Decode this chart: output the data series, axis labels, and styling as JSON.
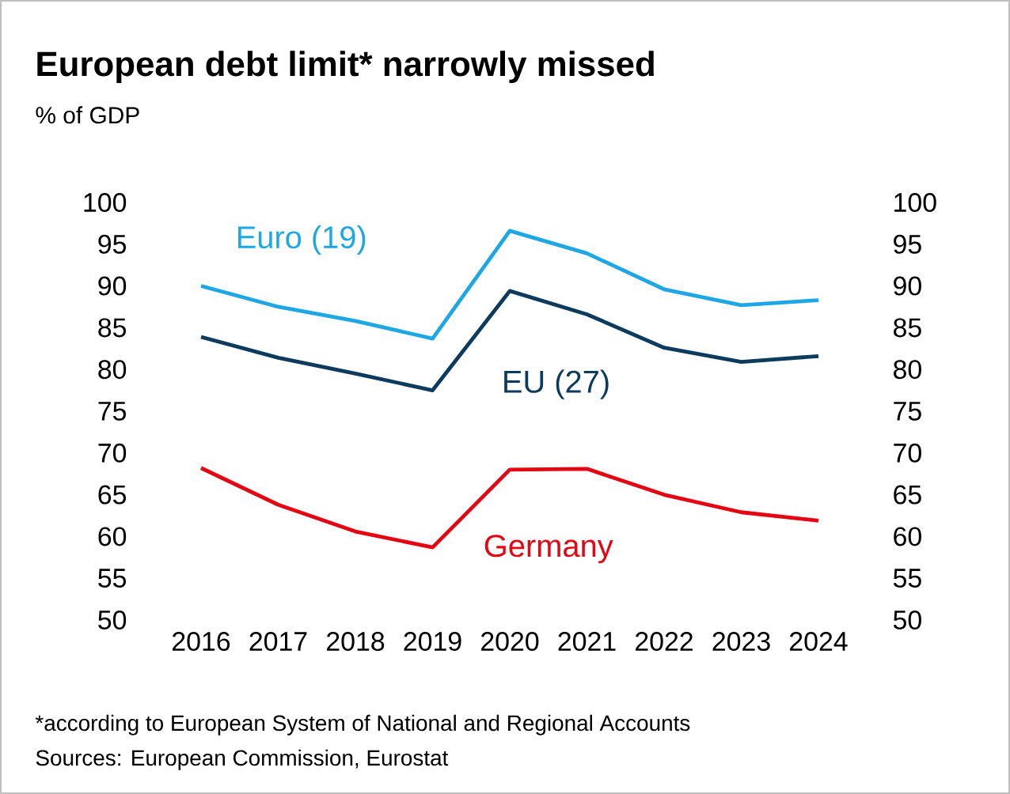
{
  "chart_data": {
    "type": "line",
    "title": "European debt limit* narrowly missed",
    "subtitle": "% of GDP",
    "categories": [
      "2016",
      "2017",
      "2018",
      "2019",
      "2020",
      "2021",
      "2022",
      "2023",
      "2024"
    ],
    "series": [
      {
        "name": "Euro (19)",
        "color": "#1ea7e4",
        "values": [
          90.0,
          87.5,
          85.8,
          83.7,
          96.6,
          93.9,
          89.6,
          87.7,
          88.3
        ]
      },
      {
        "name": "EU (27)",
        "color": "#0c3b5e",
        "values": [
          83.9,
          81.4,
          79.5,
          77.5,
          89.4,
          86.6,
          82.6,
          80.9,
          81.6
        ]
      },
      {
        "name": "Germany",
        "color": "#e30613",
        "values": [
          68.2,
          63.8,
          60.6,
          58.7,
          68.0,
          68.1,
          65.0,
          62.9,
          61.9
        ]
      }
    ],
    "ylim": [
      50,
      100
    ],
    "yticks": [
      50,
      55,
      60,
      65,
      70,
      75,
      80,
      85,
      90,
      95,
      100
    ],
    "y2lim": [
      50,
      100
    ],
    "y2ticks": [
      50,
      55,
      60,
      65,
      70,
      75,
      80,
      85,
      90,
      95,
      100
    ],
    "marker": "none",
    "line_style": "solid",
    "annotations": [
      "*according to European System of National and Regional Accounts",
      "Sources: European Commission, Eurostat"
    ]
  }
}
